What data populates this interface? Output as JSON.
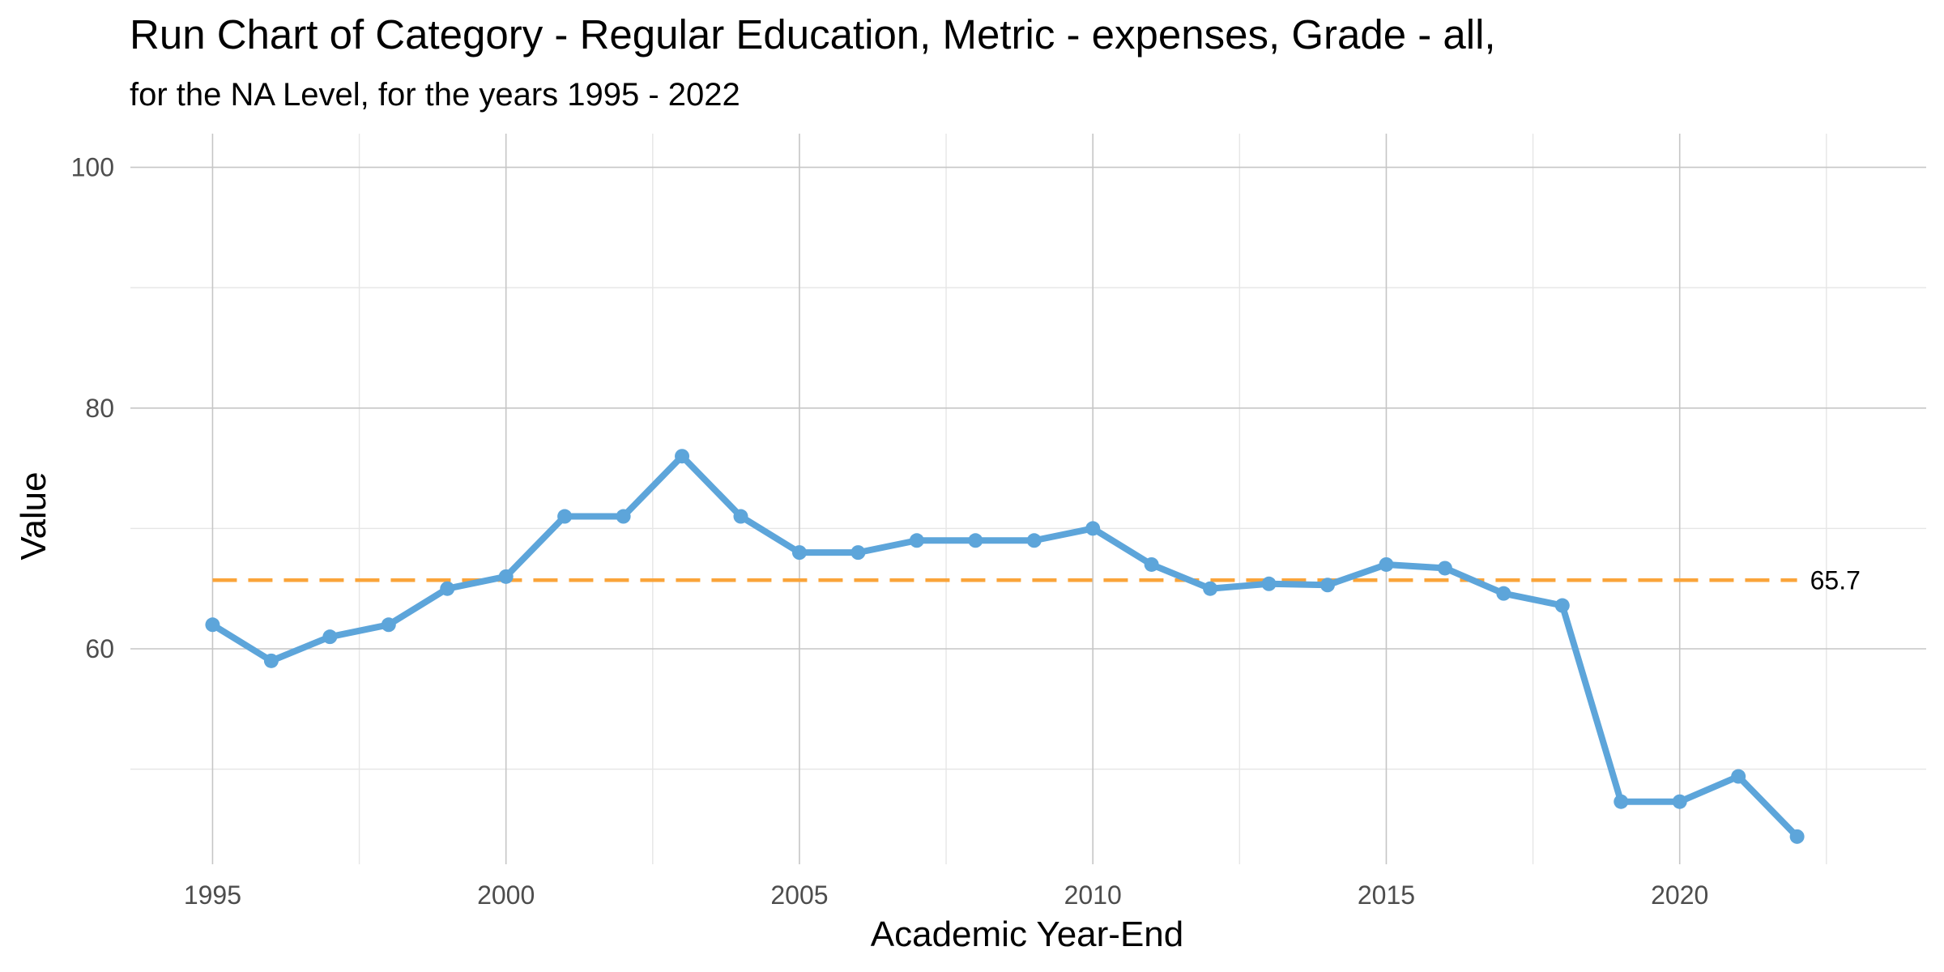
{
  "chart_data": {
    "type": "line",
    "title": "Run Chart of Category -  Regular Education, Metric - expenses, Grade - all,",
    "subtitle": "for the NA Level, for the years 1995 - 2022",
    "xlabel": "Academic Year-End",
    "ylabel": "Value",
    "xlim": [
      1993.6,
      2024.2
    ],
    "ylim": [
      42.1,
      102.8
    ],
    "x_ticks": [
      1995,
      2000,
      2005,
      2010,
      2015,
      2020
    ],
    "x_minor_ticks": [
      1997.5,
      2002.5,
      2007.5,
      2012.5,
      2017.5,
      2022.5
    ],
    "y_ticks": [
      60,
      80,
      100
    ],
    "y_minor_ticks": [
      50,
      70,
      90
    ],
    "grid": true,
    "legend": "none",
    "series": [
      {
        "name": "Value",
        "color": "#5da5da",
        "x": [
          1995,
          1996,
          1997,
          1998,
          1999,
          2000,
          2001,
          2002,
          2003,
          2004,
          2005,
          2006,
          2007,
          2008,
          2009,
          2010,
          2011,
          2012,
          2013,
          2014,
          2015,
          2016,
          2017,
          2018,
          2019,
          2020,
          2021,
          2022
        ],
        "values": [
          62.0,
          59.0,
          61.0,
          62.0,
          65.0,
          66.0,
          71.0,
          71.0,
          76.0,
          71.0,
          68.0,
          68.0,
          69.0,
          69.0,
          69.0,
          70.0,
          67.0,
          65.0,
          65.4,
          65.3,
          67.0,
          66.7,
          64.6,
          63.6,
          47.3,
          47.3,
          49.4,
          44.4
        ]
      }
    ],
    "reference_line": {
      "value": 65.7,
      "label": "65.7",
      "color": "#faa43a",
      "style": "dashed",
      "x_range": [
        1995,
        2022
      ]
    }
  }
}
